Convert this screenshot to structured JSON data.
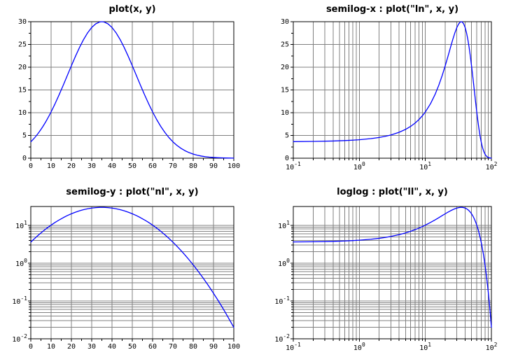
{
  "window": {
    "background": "#ffffff"
  },
  "colors": {
    "curve": "#0000ff",
    "grid": "#808080",
    "axis": "#000000",
    "text": "#000000"
  },
  "chart_data": {
    "type": "line",
    "layout": "2x2-subplots",
    "grid": true,
    "legend": "none",
    "series": {
      "x": [
        0.1,
        0.2,
        0.4,
        0.6,
        0.8,
        1,
        1.5,
        2,
        2.5,
        3,
        4,
        5,
        6,
        7,
        8,
        9,
        10,
        12,
        14,
        16,
        18,
        20,
        22,
        24,
        26,
        28,
        30,
        32,
        34,
        35,
        36,
        38,
        40,
        42,
        44,
        46,
        48,
        50,
        52,
        54,
        56,
        58,
        60,
        62,
        64,
        66,
        68,
        70,
        72,
        74,
        76,
        78,
        80,
        82,
        84,
        86,
        88,
        90,
        92,
        94,
        96,
        98,
        100
      ],
      "y": [
        3.648,
        3.692,
        3.781,
        3.872,
        3.965,
        4.06,
        4.304,
        4.559,
        4.825,
        5.102,
        5.69,
        6.323,
        7.003,
        7.728,
        8.5,
        9.314,
        10.174,
        12.012,
        13.989,
        16.064,
        18.196,
        20.326,
        22.394,
        24.336,
        26.08,
        27.562,
        28.731,
        29.536,
        29.948,
        30,
        29.948,
        29.536,
        28.731,
        27.562,
        26.08,
        24.336,
        22.394,
        20.326,
        18.196,
        16.064,
        13.989,
        12.012,
        10.174,
        8.5,
        7.003,
        5.69,
        4.559,
        3.603,
        2.809,
        2.161,
        1.639,
        1.225,
        0.903,
        0.656,
        0.471,
        0.333,
        0.233,
        0.16,
        0.109,
        0.073,
        0.048,
        0.031,
        0.02
      ]
    },
    "subplots": [
      {
        "title": "plot(x, y)",
        "xscale": "linear",
        "yscale": "linear",
        "xlim": [
          0,
          100
        ],
        "ylim": [
          0,
          30
        ],
        "xticks": [
          0,
          10,
          20,
          30,
          40,
          50,
          60,
          70,
          80,
          90,
          100
        ],
        "yticks": [
          0,
          5,
          10,
          15,
          20,
          25,
          30
        ]
      },
      {
        "title": "semilog-x : plot(\"ln\", x, y)",
        "xscale": "log",
        "yscale": "linear",
        "xlim": [
          0.1,
          100
        ],
        "ylim": [
          0,
          30
        ],
        "xtick_exponents": [
          -1,
          0,
          1,
          2
        ],
        "yticks": [
          0,
          5,
          10,
          15,
          20,
          25,
          30
        ]
      },
      {
        "title": "semilog-y : plot(\"nl\", x, y)",
        "xscale": "linear",
        "yscale": "log",
        "xlim": [
          0,
          100
        ],
        "ylim": [
          0.01,
          31.623
        ],
        "xticks": [
          0,
          10,
          20,
          30,
          40,
          50,
          60,
          70,
          80,
          90,
          100
        ],
        "ytick_exponents": [
          1,
          0,
          -1,
          -2
        ]
      },
      {
        "title": "loglog : plot(\"ll\", x, y)",
        "xscale": "log",
        "yscale": "log",
        "xlim": [
          0.1,
          100
        ],
        "ylim": [
          0.01,
          31.623
        ],
        "xtick_exponents": [
          -1,
          0,
          1,
          2
        ],
        "ytick_exponents": [
          1,
          0,
          -1,
          -2
        ]
      }
    ]
  }
}
